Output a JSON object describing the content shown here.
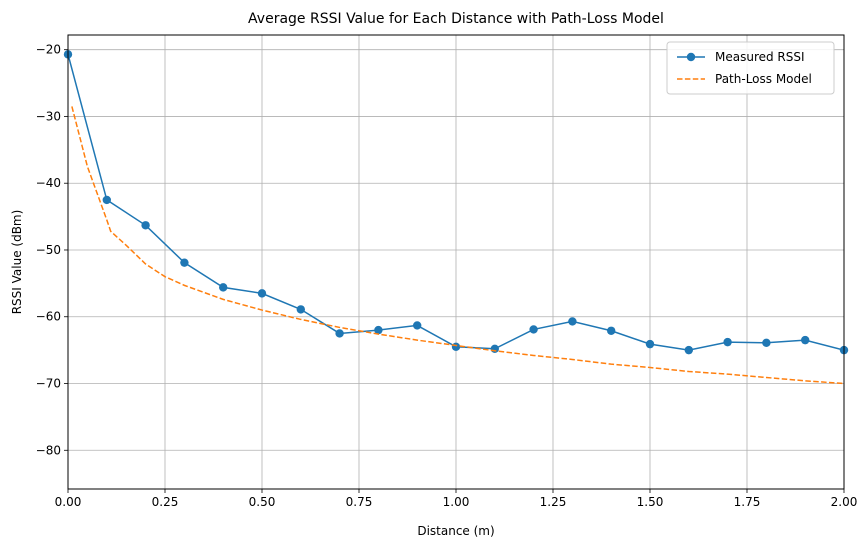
{
  "chart_data": {
    "type": "line",
    "title": "Average RSSI Value for Each Distance with Path-Loss Model",
    "xlabel": "Distance (m)",
    "ylabel": "RSSI Value (dBm)",
    "xlim": [
      0,
      2.0
    ],
    "ylim": [
      -85.8,
      -17.8
    ],
    "xticks": [
      0,
      0.25,
      0.5,
      0.75,
      1.0,
      1.25,
      1.5,
      1.75,
      2.0
    ],
    "xtick_labels": [
      "0.00",
      "0.25",
      "0.50",
      "0.75",
      "1.00",
      "1.25",
      "1.50",
      "1.75",
      "2.00"
    ],
    "yticks": [
      -20,
      -30,
      -40,
      -50,
      -60,
      -70,
      -80
    ],
    "ytick_labels": [
      "−20",
      "−30",
      "−40",
      "−50",
      "−60",
      "−70",
      "−80"
    ],
    "grid": true,
    "legend_position": "top-right",
    "series": [
      {
        "name": "Measured RSSI",
        "style": "line-marker",
        "color": "#1f77b4",
        "x": [
          0.0,
          0.1,
          0.2,
          0.3,
          0.4,
          0.5,
          0.6,
          0.7,
          0.8,
          0.9,
          1.0,
          1.1,
          1.2,
          1.3,
          1.4,
          1.5,
          1.6,
          1.7,
          1.8,
          1.9,
          2.0
        ],
        "y": [
          -20.7,
          -42.5,
          -46.3,
          -51.9,
          -55.6,
          -56.5,
          -58.9,
          -62.5,
          -62.0,
          -61.3,
          -64.5,
          -64.8,
          -61.9,
          -60.7,
          -62.1,
          -64.1,
          -65.0,
          -63.8,
          -63.9,
          -63.5,
          -65.0
        ]
      },
      {
        "name": "Path-Loss Model",
        "style": "dashed",
        "color": "#ff7f0e",
        "x": [
          0.01,
          0.05,
          0.1,
          0.11,
          0.15,
          0.2,
          0.25,
          0.3,
          0.4,
          0.5,
          0.6,
          0.7,
          0.8,
          0.9,
          1.0,
          1.1,
          1.2,
          1.3,
          1.4,
          1.5,
          1.6,
          1.7,
          1.8,
          1.9,
          2.0
        ],
        "y": [
          -28.5,
          -37.5,
          -45.5,
          -47.2,
          -49.3,
          -52.1,
          -54.0,
          -55.3,
          -57.4,
          -59.0,
          -60.4,
          -61.6,
          -62.6,
          -63.5,
          -64.3,
          -65.1,
          -65.8,
          -66.4,
          -67.1,
          -67.6,
          -68.2,
          -68.6,
          -69.1,
          -69.6,
          -70.0
        ]
      }
    ]
  }
}
